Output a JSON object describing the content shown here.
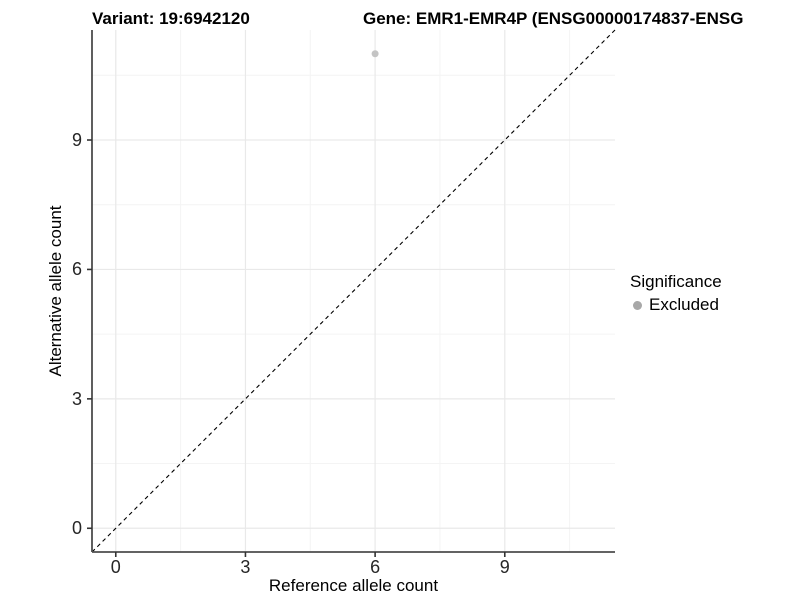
{
  "titles": {
    "variant": "Variant: 19:6942120",
    "gene": "Gene: EMR1-EMR4P (ENSG00000174837-ENSG"
  },
  "axes": {
    "x_label": "Reference allele count",
    "y_label": "Alternative allele count",
    "x_tick_labels": [
      "0",
      "3",
      "6",
      "9"
    ],
    "y_tick_labels": [
      "0",
      "3",
      "6",
      "9"
    ]
  },
  "legend": {
    "title": "Significance",
    "items": [
      {
        "label": "Excluded",
        "color": "#a8a8a8"
      }
    ]
  },
  "colors": {
    "excluded_point": "#c4c4c4",
    "legend_key": "#a8a8a8",
    "axis_line": "#4d4d4d",
    "tick_mark": "#333333",
    "tick_text": "#262626",
    "grid_major": "#e9e9e9",
    "grid_minor": "#f4f4f4",
    "identity_line": "#000000"
  },
  "chart_data": {
    "type": "scatter",
    "title": [
      "Variant: 19:6942120",
      "Gene: EMR1-EMR4P (ENSG00000174837-ENSG"
    ],
    "xlabel": "Reference allele count",
    "ylabel": "Alternative allele count",
    "xlim": [
      -0.55,
      11.55
    ],
    "ylim": [
      -0.55,
      11.55
    ],
    "x_ticks": [
      0,
      3,
      6,
      9
    ],
    "y_ticks": [
      0,
      3,
      6,
      9
    ],
    "x_minor_ticks": [
      1.5,
      4.5,
      7.5,
      10.5
    ],
    "y_minor_ticks": [
      1.5,
      4.5,
      7.5,
      10.5
    ],
    "grid": true,
    "legend_position": "right",
    "series": [
      {
        "name": "Excluded",
        "color": "#c4c4c4",
        "points": [
          {
            "x": 6,
            "y": 11
          }
        ]
      }
    ],
    "annotations": [
      {
        "type": "identity_line",
        "style": "dashed",
        "from": [
          -0.55,
          -0.55
        ],
        "to": [
          11.55,
          11.55
        ]
      }
    ]
  }
}
